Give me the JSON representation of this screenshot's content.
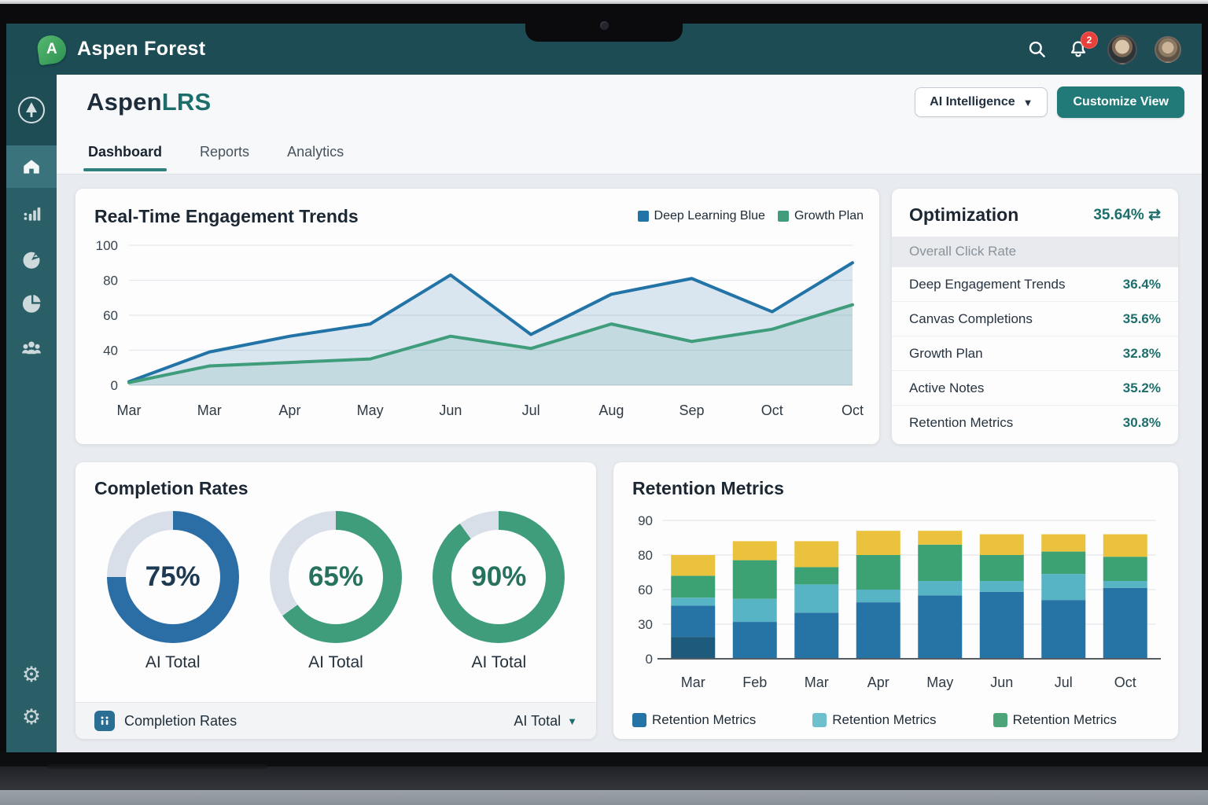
{
  "topbar": {
    "brand": "Aspen Forest",
    "logo_letter": "A",
    "search_icon": "search-icon",
    "bell_icon": "bell-icon",
    "notification_count": "2",
    "colors": {
      "navbar_bg": "#1d4c55",
      "badge": "#e8403a",
      "logo_green": "#3fae62"
    }
  },
  "sidebar": {
    "items": [
      {
        "icon": "tree-logo-icon"
      },
      {
        "icon": "home-icon",
        "active": true
      },
      {
        "icon": "bar-chart-icon"
      },
      {
        "icon": "gauge-icon"
      },
      {
        "icon": "pie-chart-icon"
      },
      {
        "icon": "users-icon"
      }
    ],
    "footer_items": [
      {
        "icon": "gear-icon"
      },
      {
        "icon": "gear-icon"
      }
    ],
    "colors": {
      "bg": "#2b5f68",
      "active_bg": "#3a737c"
    }
  },
  "header": {
    "title_primary": "Aspen",
    "title_accent": "LRS",
    "ai_dropdown_label": "AI Intelligence",
    "customize_button_label": "Customize View",
    "accent_color": "#1d6e6a",
    "button_teal": "#217a78"
  },
  "tabs": [
    {
      "label": "Dashboard",
      "active": true
    },
    {
      "label": "Reports",
      "active": false
    },
    {
      "label": "Analytics",
      "active": false
    }
  ],
  "optimization": {
    "title": "Optimization",
    "headline_value": "35.64%",
    "headline_arrow": "⇄",
    "subheader": "Overall Click Rate",
    "rows": [
      {
        "label": "Deep Engagement Trends",
        "value": "36.4%"
      },
      {
        "label": "Canvas Completions",
        "value": "35.6%"
      },
      {
        "label": "Growth Plan",
        "value": "32.8%"
      },
      {
        "label": "Active Notes",
        "value": "35.2%"
      },
      {
        "label": "Retention Metrics",
        "value": "30.8%"
      }
    ],
    "value_color": "#1d6e6a"
  },
  "chart_data": [
    {
      "id": "engagement",
      "type": "area",
      "title": "Real-Time Engagement Trends",
      "categories": [
        "Mar",
        "Mar",
        "Apr",
        "May",
        "Jun",
        "Jul",
        "Aug",
        "Sep",
        "Oct",
        "Oct"
      ],
      "y_ticks": [
        0,
        40,
        60,
        80,
        100
      ],
      "ylim": [
        0,
        100
      ],
      "grid": true,
      "legend_position": "top-right",
      "series": [
        {
          "name": "Deep Learning Blue",
          "color": "#2273a6",
          "fill": "rgba(34,115,166,0.16)",
          "values": [
            4,
            38,
            48,
            55,
            83,
            49,
            72,
            81,
            62,
            90
          ]
        },
        {
          "name": "Growth Plan",
          "color": "#3f9d7c",
          "fill": "rgba(63,157,124,0.14)",
          "values": [
            3,
            22,
            26,
            30,
            48,
            41,
            55,
            45,
            52,
            66
          ]
        }
      ]
    },
    {
      "id": "completion",
      "type": "pie",
      "title": "Completion Rates",
      "track_color": "#d8dfe8",
      "donuts": [
        {
          "value": 75,
          "display": "75%",
          "label": "AI Total",
          "color": "#2b6ea6",
          "text_color": "#1d3a52"
        },
        {
          "value": 65,
          "display": "65%",
          "label": "AI Total",
          "color": "#3f9d7c",
          "text_color": "#27725f"
        },
        {
          "value": 90,
          "display": "90%",
          "label": "AI Total",
          "color": "#3f9d7c",
          "text_color": "#27725f"
        }
      ],
      "footer": {
        "icon": "mini-chart-icon",
        "label": "Completion Rates",
        "filter_label": "AI Total"
      }
    },
    {
      "id": "retention",
      "type": "bar",
      "title": "Retention Metrics",
      "categories": [
        "Mar",
        "Feb",
        "Mar",
        "Apr",
        "May",
        "Jun",
        "Jul",
        "Oct"
      ],
      "y_ticks": [
        0,
        30,
        60,
        80,
        90
      ],
      "ylim": [
        0,
        90
      ],
      "grid": true,
      "stack_colors": [
        "#1d5a7c",
        "#2673a5",
        "#57b4c5",
        "#3ca173",
        "#eac23d"
      ],
      "bars": [
        [
          19,
          27,
          7,
          15,
          12
        ],
        [
          0,
          32,
          20,
          25,
          7
        ],
        [
          0,
          40,
          23,
          10,
          11
        ],
        [
          0,
          49,
          11,
          20,
          7
        ],
        [
          0,
          55,
          10,
          18,
          4
        ],
        [
          0,
          58,
          7,
          15,
          6
        ],
        [
          0,
          51,
          18,
          12,
          5
        ],
        [
          0,
          61,
          4,
          14,
          7
        ]
      ],
      "legend": [
        {
          "label": "Retention Metrics",
          "color": "#2673a5"
        },
        {
          "label": "Retention Metrics",
          "color": "#6fc0cd"
        },
        {
          "label": "Retention Metrics",
          "color": "#4ba578"
        }
      ]
    }
  ]
}
